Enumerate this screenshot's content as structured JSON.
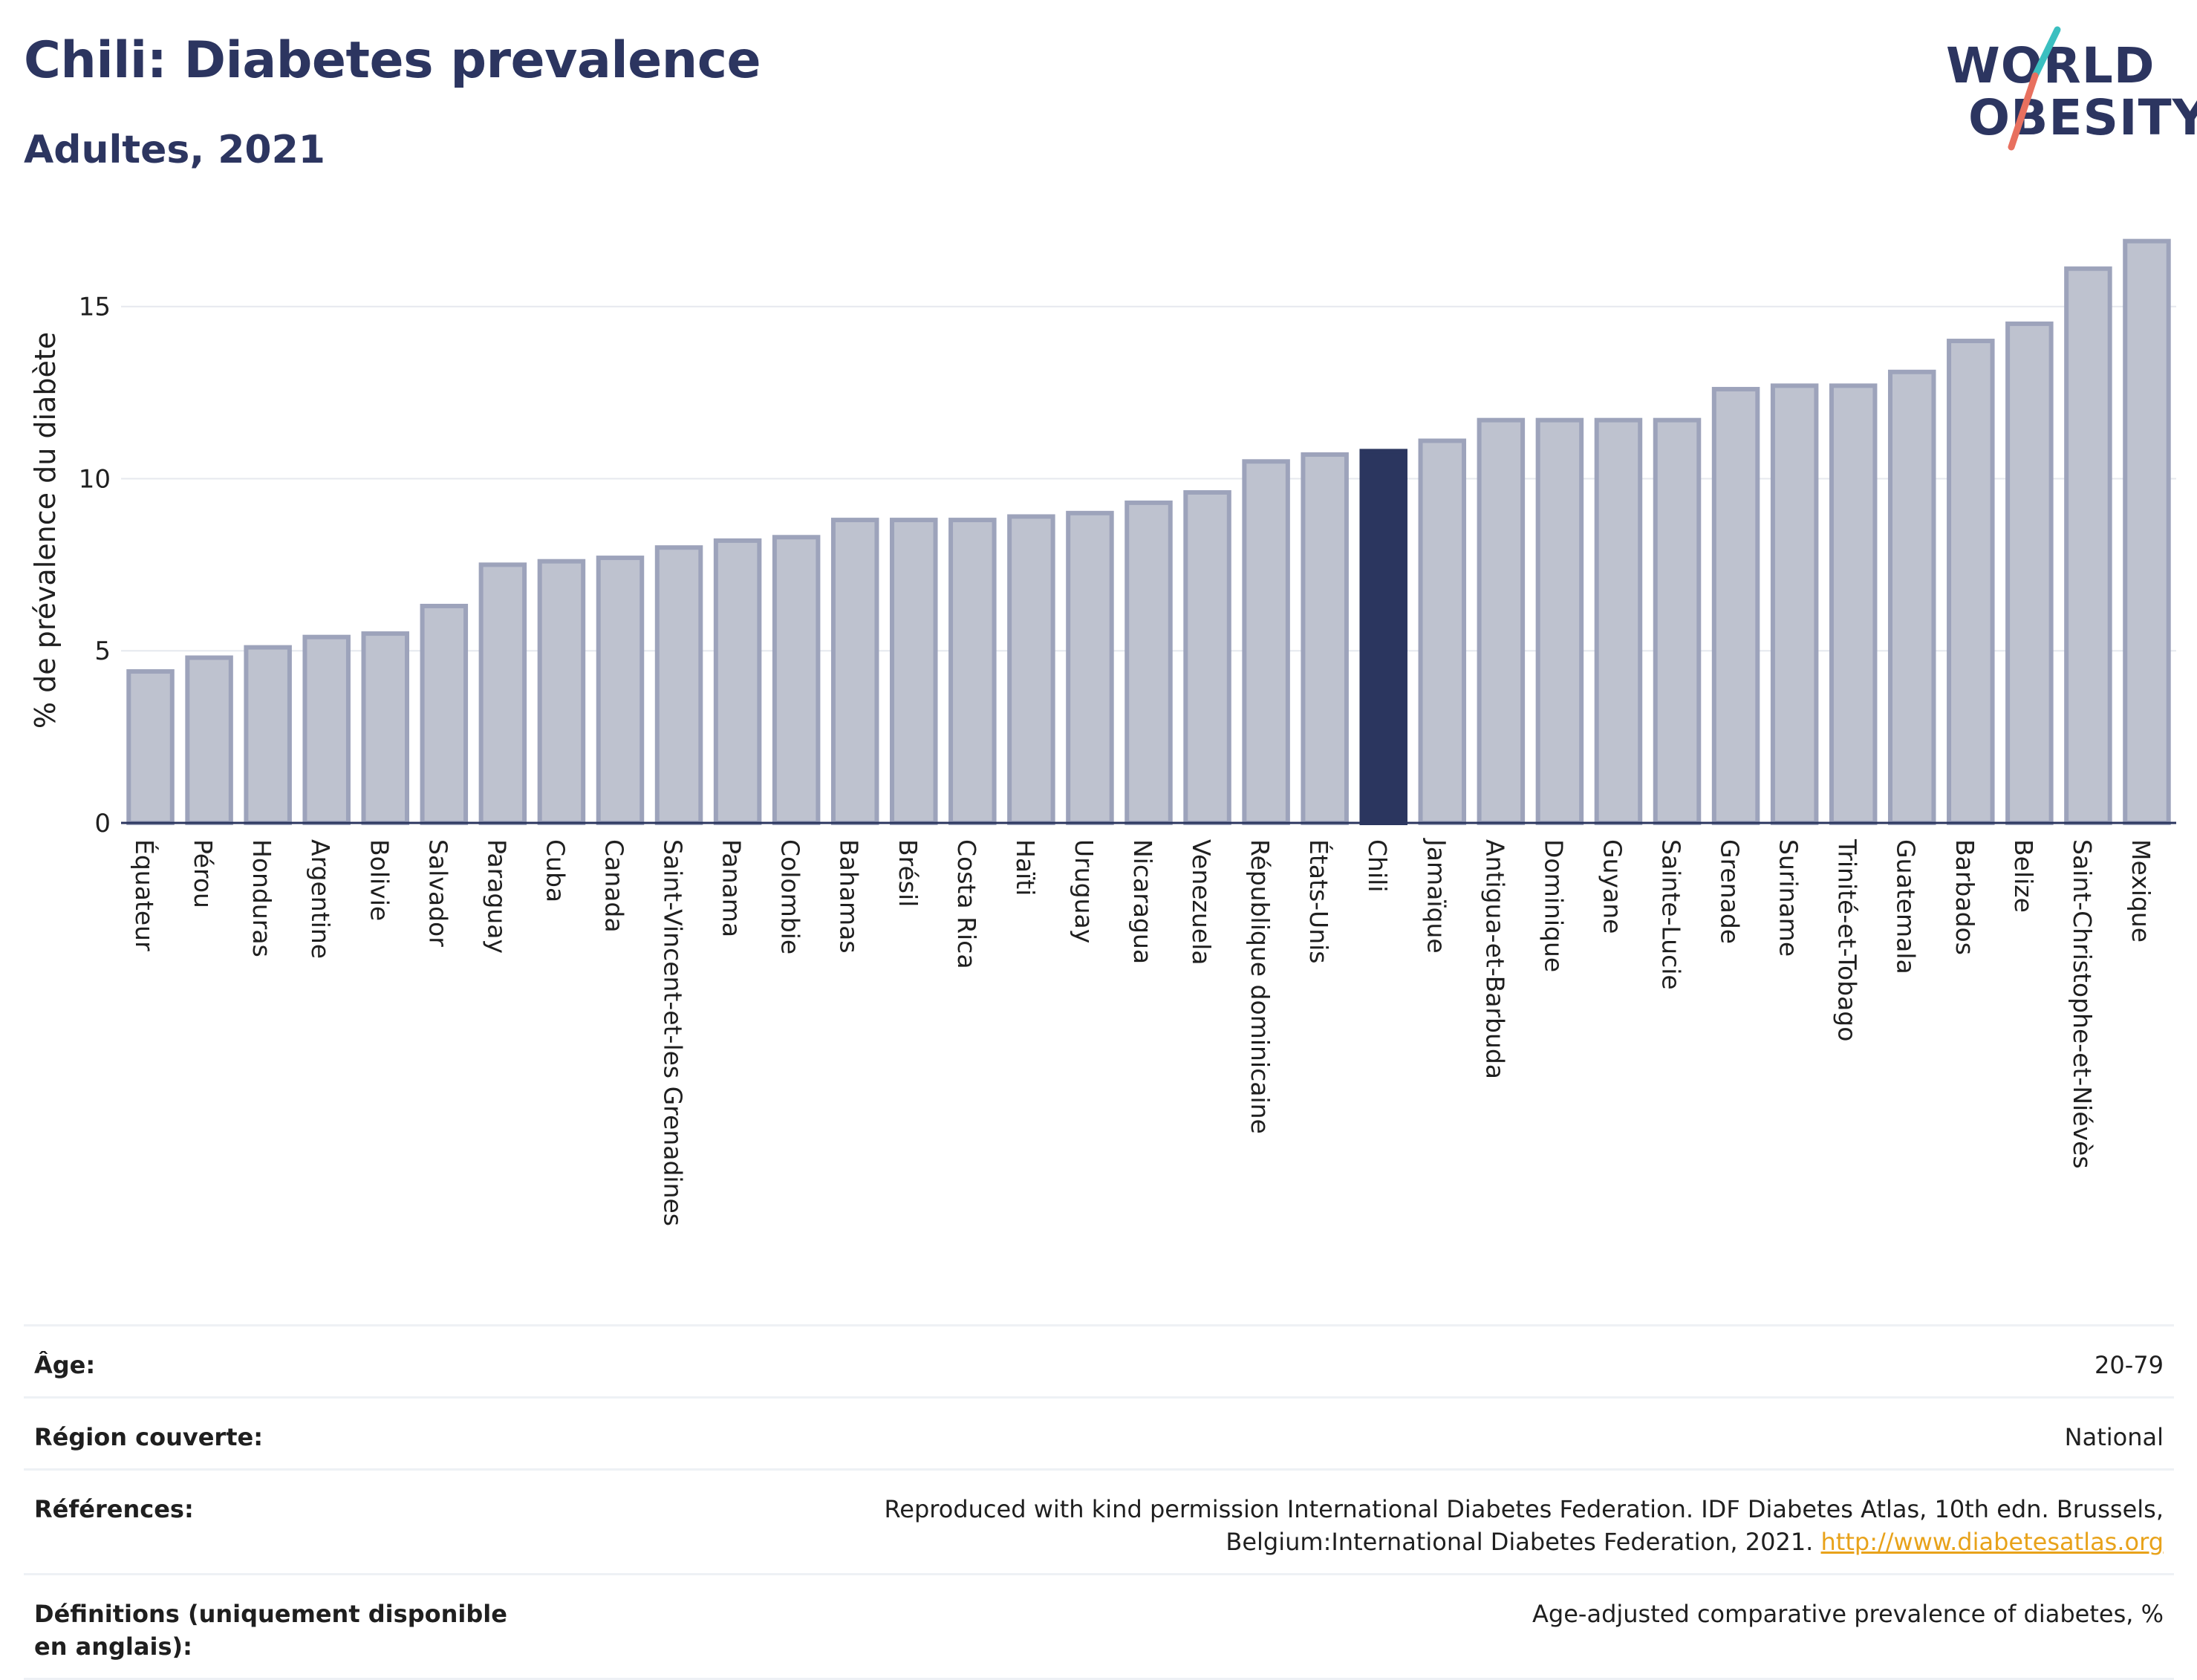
{
  "header": {
    "title": "Chili: Diabetes prevalence",
    "subtitle": "Adultes, 2021"
  },
  "logo": {
    "line1": "WORLD",
    "line2": "OBESITY"
  },
  "colors": {
    "highlight_bar": "#2b365f",
    "default_bar_fill": "#bec2cf",
    "default_bar_stroke": "#9da3bb",
    "text_dark": "#2c3560",
    "link": "#e8a21a"
  },
  "chart_data": {
    "type": "bar",
    "ylabel": "% de prévalence du diabète",
    "xlabel": "",
    "ylim": [
      0,
      17
    ],
    "yticks": [
      0,
      5,
      10,
      15
    ],
    "grid": true,
    "highlight": "Chili",
    "categories": [
      "Équateur",
      "Pérou",
      "Honduras",
      "Argentine",
      "Bolivie",
      "Salvador",
      "Paraguay",
      "Cuba",
      "Canada",
      "Saint-Vincent-et-les Grenadines",
      "Panama",
      "Colombie",
      "Bahamas",
      "Brésil",
      "Costa Rica",
      "Haïti",
      "Uruguay",
      "Nicaragua",
      "Venezuela",
      "République dominicaine",
      "États-Unis",
      "Chili",
      "Jamaïque",
      "Antigua-et-Barbuda",
      "Dominique",
      "Guyane",
      "Sainte-Lucie",
      "Grenade",
      "Suriname",
      "Trinité-et-Tobago",
      "Guatemala",
      "Barbados",
      "Belize",
      "Saint-Christophe-et-Niévès",
      "Mexique"
    ],
    "values": [
      4.4,
      4.8,
      5.1,
      5.4,
      5.5,
      6.3,
      7.5,
      7.6,
      7.7,
      8.0,
      8.2,
      8.3,
      8.8,
      8.8,
      8.8,
      8.9,
      9.0,
      9.3,
      9.6,
      10.5,
      10.7,
      10.8,
      11.1,
      11.7,
      11.7,
      11.7,
      11.7,
      12.6,
      12.7,
      12.7,
      13.1,
      14.0,
      14.5,
      16.1,
      16.9
    ]
  },
  "info": {
    "age_label": "Âge:",
    "age_value": "20-79",
    "region_label": "Région couverte:",
    "region_value": "National",
    "refs_label": "Références:",
    "refs_value": "Reproduced with kind permission International Diabetes Federation.  IDF Diabetes Atlas, 10th edn. Brussels, Belgium:International Diabetes Federation, 2021.",
    "refs_link": "http://www.diabetesatlas.org",
    "defs_label": "Définitions (uniquement disponible en anglais):",
    "defs_value": "Age-adjusted comparative prevalence of diabetes, %"
  }
}
